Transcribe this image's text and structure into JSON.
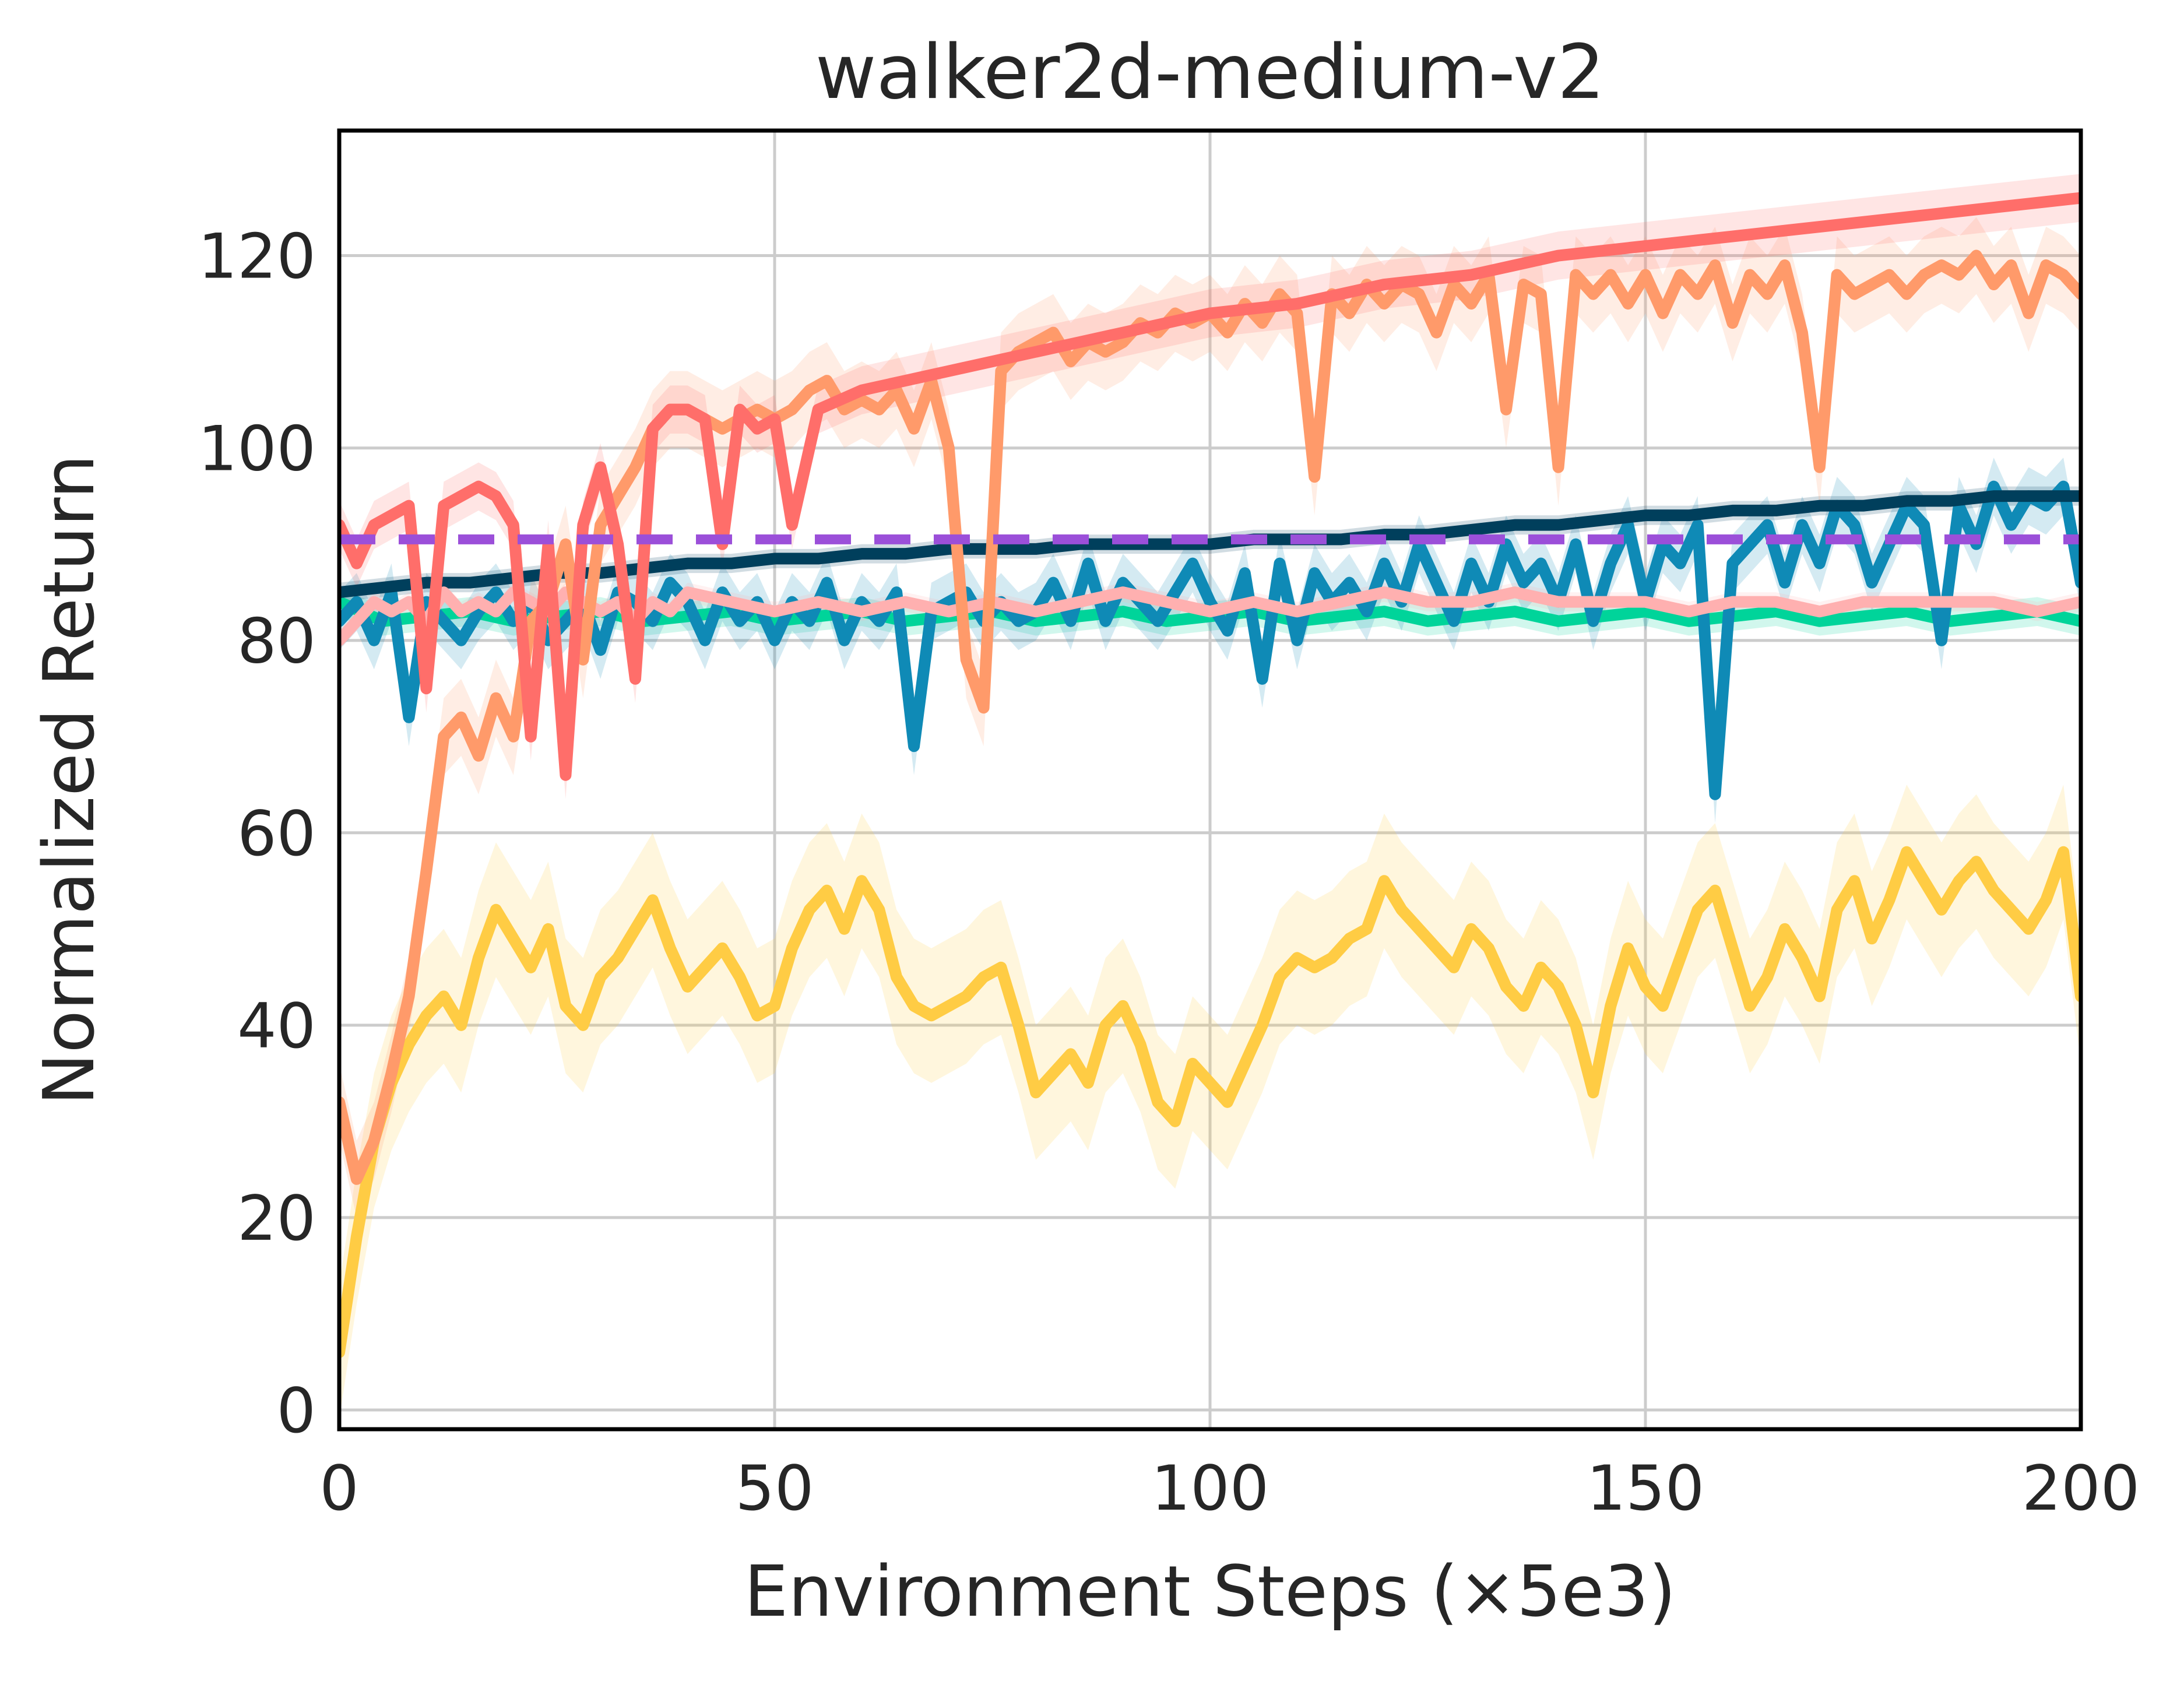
{
  "chart_data": {
    "type": "line",
    "title": "walker2d-medium-v2",
    "xlabel": "Environment Steps (×5e3)",
    "ylabel": "Normalized Return",
    "xlim": [
      0,
      200
    ],
    "ylim": [
      -2,
      133
    ],
    "xticks": [
      0,
      50,
      100,
      150,
      200
    ],
    "yticks": [
      0,
      20,
      40,
      60,
      80,
      100,
      120
    ],
    "grid": true,
    "legend": "none",
    "reference_line": {
      "y": 90.5,
      "color": "#9b4fd9",
      "style": "dashed"
    },
    "series": [
      {
        "color": "#ffcc44",
        "band": 7,
        "x": [
          0,
          2,
          4,
          6,
          8,
          10,
          12,
          14,
          16,
          18,
          20,
          22,
          24,
          26,
          28,
          30,
          32,
          34,
          36,
          38,
          40,
          42,
          44,
          46,
          48,
          50,
          52,
          54,
          56,
          58,
          60,
          62,
          64,
          66,
          68,
          70,
          72,
          74,
          76,
          78,
          80,
          82,
          84,
          86,
          88,
          90,
          92,
          94,
          96,
          98,
          100,
          102,
          104,
          106,
          108,
          110,
          112,
          114,
          116,
          118,
          120,
          122,
          124,
          126,
          128,
          130,
          132,
          134,
          136,
          138,
          140,
          142,
          144,
          146,
          148,
          150,
          152,
          154,
          156,
          158,
          160,
          162,
          164,
          166,
          168,
          170,
          172,
          174,
          176,
          178,
          180,
          182,
          184,
          186,
          188,
          190,
          192,
          194,
          196,
          198,
          200
        ],
        "y": [
          6,
          18,
          28,
          34,
          38,
          41,
          43,
          40,
          47,
          52,
          49,
          46,
          50,
          42,
          40,
          45,
          47,
          50,
          53,
          48,
          44,
          46,
          48,
          45,
          41,
          42,
          48,
          52,
          54,
          50,
          55,
          52,
          45,
          42,
          41,
          42,
          43,
          45,
          46,
          40,
          33,
          35,
          37,
          34,
          40,
          42,
          38,
          32,
          30,
          36,
          34,
          32,
          36,
          40,
          45,
          47,
          46,
          47,
          49,
          50,
          55,
          52,
          50,
          48,
          46,
          50,
          48,
          44,
          42,
          46,
          44,
          40,
          33,
          42,
          48,
          44,
          42,
          47,
          52,
          54,
          48,
          42,
          45,
          50,
          47,
          43,
          52,
          55,
          49,
          53,
          58,
          55,
          52,
          55,
          57,
          54,
          52,
          50,
          53,
          58,
          43
        ]
      },
      {
        "color": "#00d49a",
        "band": 1.5,
        "x": [
          0,
          5,
          10,
          15,
          20,
          25,
          30,
          35,
          40,
          45,
          50,
          55,
          60,
          65,
          70,
          75,
          80,
          85,
          90,
          95,
          100,
          105,
          110,
          115,
          120,
          125,
          130,
          135,
          140,
          145,
          150,
          155,
          160,
          165,
          170,
          175,
          180,
          185,
          190,
          195,
          200
        ],
        "y": [
          84,
          82,
          82.5,
          83,
          82,
          82.5,
          83,
          82,
          82.5,
          83,
          82,
          82.5,
          83,
          82,
          82.5,
          83,
          82,
          82.5,
          83,
          82,
          82.5,
          83,
          82,
          82.5,
          83,
          82,
          82.5,
          83,
          82,
          82.5,
          83,
          82,
          82.5,
          83,
          82,
          82.5,
          83,
          82,
          82.5,
          83,
          82
        ]
      },
      {
        "color": "#0f8ab6",
        "band": 3,
        "x": [
          0,
          2,
          4,
          6,
          8,
          10,
          12,
          14,
          16,
          18,
          20,
          22,
          24,
          26,
          28,
          30,
          32,
          34,
          36,
          38,
          40,
          42,
          44,
          46,
          48,
          50,
          52,
          54,
          56,
          58,
          60,
          62,
          64,
          66,
          68,
          70,
          72,
          74,
          76,
          78,
          80,
          82,
          84,
          86,
          88,
          90,
          92,
          94,
          96,
          98,
          100,
          102,
          104,
          106,
          108,
          110,
          112,
          114,
          116,
          118,
          120,
          122,
          124,
          126,
          128,
          130,
          132,
          134,
          136,
          138,
          140,
          142,
          144,
          146,
          148,
          150,
          152,
          154,
          156,
          158,
          160,
          162,
          164,
          166,
          168,
          170,
          172,
          174,
          176,
          178,
          180,
          182,
          184,
          186,
          188,
          190,
          192,
          194,
          196,
          198,
          200
        ],
        "y": [
          82,
          84,
          80,
          85,
          72,
          84,
          82,
          80,
          83,
          85,
          82,
          84,
          80,
          82,
          84,
          79,
          85,
          84,
          82,
          86,
          84,
          80,
          85,
          82,
          84,
          80,
          84,
          82,
          86,
          80,
          84,
          82,
          85,
          69,
          83,
          84,
          85,
          82,
          84,
          82,
          83,
          86,
          82,
          88,
          82,
          86,
          84,
          82,
          85,
          88,
          84,
          81,
          87,
          76,
          88,
          80,
          87,
          84,
          86,
          83,
          88,
          84,
          90,
          86,
          82,
          88,
          84,
          90,
          86,
          88,
          84,
          90,
          82,
          88,
          92,
          84,
          90,
          88,
          92,
          64,
          88,
          90,
          92,
          86,
          92,
          88,
          94,
          92,
          86,
          90,
          94,
          92,
          80,
          94,
          90,
          96,
          92,
          95,
          94,
          96,
          86
        ]
      },
      {
        "color": "#003f5c",
        "band": 1,
        "x": [
          0,
          5,
          10,
          15,
          20,
          25,
          30,
          35,
          40,
          45,
          50,
          55,
          60,
          65,
          70,
          75,
          80,
          85,
          90,
          95,
          100,
          105,
          110,
          115,
          120,
          125,
          130,
          135,
          140,
          145,
          150,
          155,
          160,
          165,
          170,
          175,
          180,
          185,
          190,
          195,
          200
        ],
        "y": [
          85,
          85.5,
          86,
          86,
          86.5,
          87,
          87,
          87.5,
          88,
          88,
          88.5,
          88.5,
          89,
          89,
          89.5,
          89.5,
          89.5,
          90,
          90,
          90,
          90,
          90.5,
          90.5,
          90.5,
          91,
          91,
          91.5,
          92,
          92,
          92.5,
          93,
          93,
          93.5,
          93.5,
          94,
          94,
          94.5,
          94.5,
          95,
          95,
          95
        ]
      },
      {
        "color": "#ffb0b0",
        "band": 1,
        "x": [
          0,
          2,
          4,
          6,
          8,
          10,
          12,
          14,
          16,
          18,
          20,
          22,
          24,
          26,
          28,
          30,
          32,
          34,
          36,
          38,
          40,
          45,
          50,
          55,
          60,
          65,
          70,
          75,
          80,
          85,
          90,
          95,
          100,
          105,
          110,
          115,
          120,
          125,
          130,
          135,
          140,
          145,
          150,
          155,
          160,
          165,
          170,
          175,
          180,
          185,
          190,
          195,
          200
        ],
        "y": [
          80,
          82,
          84,
          83,
          84,
          82,
          85,
          83,
          84,
          83,
          85,
          84,
          83,
          85,
          84,
          83,
          84,
          82,
          84,
          83,
          85,
          84,
          83,
          84,
          83,
          84,
          83,
          84,
          83,
          84,
          85,
          84,
          83,
          84,
          83,
          84,
          85,
          84,
          84,
          85,
          84,
          84,
          84,
          83,
          84,
          84,
          83,
          84,
          84,
          84,
          84,
          83,
          84
        ]
      },
      {
        "color": "#ff9a6a",
        "band": 4,
        "x": [
          0,
          2,
          4,
          6,
          8,
          10,
          12,
          14,
          16,
          18,
          20,
          22,
          24,
          26,
          28,
          30,
          32,
          34,
          36,
          38,
          40,
          42,
          44,
          46,
          48,
          50,
          52,
          54,
          56,
          58,
          60,
          62,
          64,
          66,
          68,
          70,
          72,
          74,
          76,
          78,
          80,
          82,
          84,
          86,
          88,
          90,
          92,
          94,
          96,
          98,
          100,
          102,
          104,
          106,
          108,
          110,
          112,
          114,
          116,
          118,
          120,
          122,
          124,
          126,
          128,
          130,
          132,
          134,
          136,
          138,
          140,
          142,
          144,
          146,
          148,
          150,
          152,
          154,
          156,
          158,
          160,
          162,
          164,
          166,
          168,
          170,
          172,
          174,
          176,
          178,
          180,
          182,
          184,
          186,
          188,
          190,
          192,
          194,
          196,
          198,
          200
        ],
        "y": [
          32,
          24,
          28,
          35,
          43,
          56,
          70,
          72,
          68,
          74,
          70,
          82,
          84,
          90,
          78,
          92,
          95,
          98,
          102,
          104,
          104,
          103,
          102,
          103,
          104,
          103,
          104,
          106,
          107,
          104,
          105,
          104,
          106,
          102,
          107,
          100,
          78,
          73,
          108,
          110,
          111,
          112,
          109,
          111,
          110,
          111,
          113,
          112,
          114,
          113,
          114,
          112,
          115,
          113,
          116,
          114,
          97,
          116,
          114,
          117,
          115,
          117,
          116,
          112,
          117,
          115,
          118,
          104,
          117,
          116,
          98,
          118,
          116,
          118,
          115,
          118,
          114,
          118,
          116,
          119,
          113,
          118,
          116,
          119,
          112,
          98,
          118,
          116,
          117,
          118,
          116,
          118,
          119,
          118,
          120,
          117,
          119,
          114,
          119,
          118,
          116
        ]
      },
      {
        "color": "#ff6e6a",
        "band": 2.5,
        "x": [
          0,
          2,
          4,
          6,
          8,
          10,
          12,
          14,
          16,
          18,
          20,
          22,
          24,
          26,
          28,
          30,
          32,
          34,
          36,
          38,
          40,
          42,
          44,
          46,
          48,
          50,
          52,
          55,
          60,
          65,
          70,
          75,
          80,
          85,
          90,
          95,
          100,
          105,
          110,
          115,
          120,
          125,
          130,
          135,
          140,
          145,
          150,
          155,
          160,
          165,
          170,
          175,
          180,
          185,
          190,
          195,
          200
        ],
        "y": [
          92,
          88,
          92,
          93,
          94,
          75,
          94,
          95,
          96,
          95,
          92,
          70,
          90,
          66,
          92,
          98,
          90,
          76,
          102,
          104,
          104,
          103,
          90,
          104,
          102,
          103,
          92,
          104,
          106,
          107,
          108,
          109,
          110,
          111,
          112,
          113,
          114,
          114.5,
          115,
          116,
          117,
          117.5,
          118,
          119,
          120,
          120.5,
          121,
          121.5,
          122,
          122.5,
          123,
          123.5,
          124,
          124.5,
          125,
          125.5,
          126
        ]
      }
    ]
  }
}
